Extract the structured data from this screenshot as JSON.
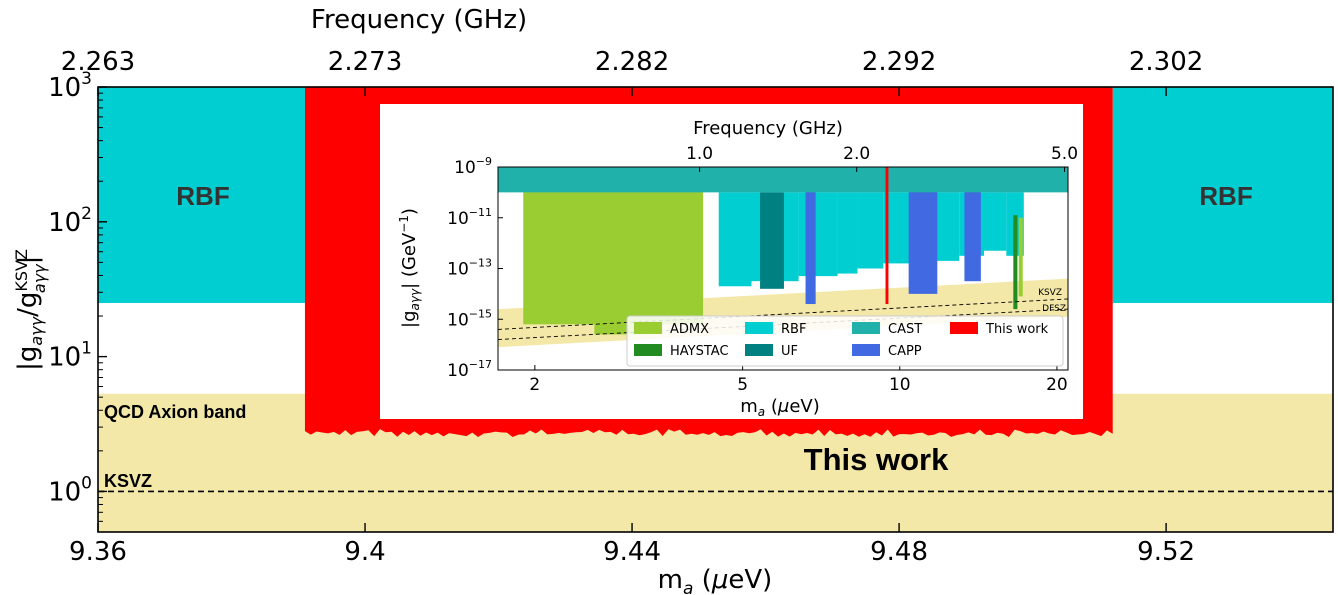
{
  "chart_data": [
    {
      "type": "area",
      "title": "",
      "xlabel": "m_a (μeV)",
      "ylabel": "|g_aγγ/g_aγγ^KSVZ|",
      "top_xlabel": "Frequency (GHz)",
      "xlim": [
        9.36,
        9.545
      ],
      "ylim": [
        0.5,
        1000
      ],
      "yscale": "log",
      "x_ticks": [
        "9.36",
        "9.4",
        "9.44",
        "9.48",
        "9.52"
      ],
      "x_tick_values": [
        9.36,
        9.4,
        9.44,
        9.48,
        9.52
      ],
      "top_ticks": [
        "2.263",
        "2.273",
        "2.282",
        "2.292",
        "2.302"
      ],
      "top_tick_values": [
        9.36,
        9.4,
        9.44,
        9.48,
        9.52
      ],
      "y_ticks": [
        {
          "base": "10",
          "exp": "0",
          "value": 1
        },
        {
          "base": "10",
          "exp": "1",
          "value": 10
        },
        {
          "base": "10",
          "exp": "2",
          "value": 100
        },
        {
          "base": "10",
          "exp": "3",
          "value": 1000
        }
      ],
      "colors": {
        "rbf": "#00ced1",
        "this_work": "#ff0000",
        "qcd_band": "#f3e8a8",
        "ksvz_line": "#000000"
      },
      "series": [
        {
          "name": "RBF",
          "x": [
            9.36,
            9.391
          ],
          "y": [
            25,
            1000
          ]
        },
        {
          "name": "RBF",
          "x": [
            9.512,
            9.545
          ],
          "y": [
            25,
            1000
          ]
        },
        {
          "name": "This work",
          "x": [
            9.391,
            9.512
          ],
          "y": [
            2.8,
            1000
          ]
        }
      ],
      "qcd_band": {
        "y": [
          0.5,
          5.3
        ]
      },
      "ksvz_y": 1.0,
      "annotations": {
        "rbf_left": "RBF",
        "rbf_right": "RBF",
        "qcd": "QCD Axion band",
        "ksvz": "KSVZ",
        "this_work": "This work"
      }
    },
    {
      "type": "area",
      "title": "",
      "xlabel": "m_a (μeV)",
      "ylabel": "|g_aγγ| (GeV⁻¹)",
      "top_xlabel": "Frequency (GHz)",
      "xlim": [
        1.7,
        21
      ],
      "ylim": [
        1e-17,
        1e-09
      ],
      "xscale": "log",
      "yscale": "log",
      "x_ticks": [
        "2",
        "5",
        "10",
        "20"
      ],
      "x_tick_values": [
        2,
        5,
        10,
        20
      ],
      "top_ticks": [
        "1.0",
        "2.0",
        "5.0"
      ],
      "top_tick_values": [
        4.136,
        8.27,
        20.68
      ],
      "y_ticks": [
        {
          "base": "10",
          "exp": "−9",
          "value": -9
        },
        {
          "base": "10",
          "exp": "−11",
          "value": -11
        },
        {
          "base": "10",
          "exp": "−13",
          "value": -13
        },
        {
          "base": "10",
          "exp": "−15",
          "value": -15
        },
        {
          "base": "10",
          "exp": "−17",
          "value": -17
        }
      ],
      "series": [
        {
          "name": "ADMX",
          "color": "#9acd32",
          "regions": [
            {
              "x": [
                1.9,
                4.2
              ],
              "y": [
                -15.2,
                -9.7
              ]
            },
            {
              "x": [
                2.6,
                3.3
              ],
              "y": [
                -15.6,
                -15.0
              ]
            },
            {
              "x": [
                16.9,
                17.2
              ],
              "y": [
                -14.1,
                -11.0
              ]
            }
          ]
        },
        {
          "name": "HAYSTAC",
          "color": "#228b22",
          "regions": [
            {
              "x": [
                16.5,
                16.8
              ],
              "y": [
                -14.6,
                -10.9
              ]
            }
          ]
        },
        {
          "name": "RBF",
          "color": "#00ced1",
          "steps": [
            [
              4.5,
              -13.7,
              -10.0
            ],
            [
              5.2,
              -13.5,
              -10.0
            ],
            [
              6.4,
              -13.3,
              -10.0
            ],
            [
              7.6,
              -13.2,
              -10.0
            ],
            [
              8.3,
              -13.0,
              -10.0
            ],
            [
              9.3,
              -12.8,
              -10.0
            ],
            [
              11.5,
              -12.7,
              -10.0
            ],
            [
              13.0,
              -12.5,
              -10.0
            ],
            [
              14.5,
              -12.3,
              -10.0
            ],
            [
              16.0,
              -12.5,
              -10.0
            ]
          ]
        },
        {
          "name": "UF",
          "color": "#008080",
          "regions": [
            {
              "x": [
                5.4,
                6.0
              ],
              "y": [
                -13.8,
                -10.0
              ]
            }
          ]
        },
        {
          "name": "CAST",
          "color": "#20b2aa",
          "regions": [
            {
              "x": [
                1.7,
                21
              ],
              "y": [
                -10.0,
                -9.0
              ]
            }
          ]
        },
        {
          "name": "CAPP",
          "color": "#4169e1",
          "regions": [
            {
              "x": [
                6.6,
                6.9
              ],
              "y": [
                -14.4,
                -9.0
              ]
            },
            {
              "x": [
                10.4,
                11.8
              ],
              "y": [
                -14.0,
                -9.0
              ]
            },
            {
              "x": [
                13.3,
                14.3
              ],
              "y": [
                -13.5,
                -9.0
              ]
            }
          ]
        },
        {
          "name": "This work",
          "color": "#ff0000",
          "regions": [
            {
              "x": [
                9.391,
                9.512
              ],
              "y": [
                -14.4,
                -9.0
              ]
            }
          ]
        }
      ],
      "band": {
        "color": "#f3e8a8",
        "lower": [
          [
            1.7,
            -16.1
          ],
          [
            21,
            -14.9
          ]
        ],
        "upper": [
          [
            1.7,
            -14.6
          ],
          [
            21,
            -13.4
          ]
        ]
      },
      "ksvz_line": {
        "label": "KSVZ",
        "points": [
          [
            1.7,
            -15.4
          ],
          [
            21,
            -14.2
          ]
        ]
      },
      "dfsz_line": {
        "label": "DFSZ",
        "points": [
          [
            1.7,
            -15.8
          ],
          [
            21,
            -14.6
          ]
        ]
      },
      "legend": {
        "placement": "lower-right",
        "entries": [
          {
            "name": "ADMX",
            "color": "#9acd32"
          },
          {
            "name": "RBF",
            "color": "#00ced1"
          },
          {
            "name": "CAST",
            "color": "#20b2aa"
          },
          {
            "name": "This work",
            "color": "#ff0000"
          },
          {
            "name": "HAYSTAC",
            "color": "#228b22"
          },
          {
            "name": "UF",
            "color": "#008080"
          },
          {
            "name": "CAPP",
            "color": "#4169e1"
          }
        ]
      }
    }
  ]
}
